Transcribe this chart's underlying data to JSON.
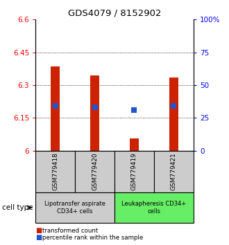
{
  "title": "GDS4079 / 8152902",
  "samples": [
    "GSM779418",
    "GSM779420",
    "GSM779419",
    "GSM779421"
  ],
  "bar_tops": [
    6.385,
    6.345,
    6.055,
    6.335
  ],
  "bar_bottom": 6.0,
  "blue_y": [
    6.205,
    6.2,
    6.185,
    6.205
  ],
  "ylim": [
    6.0,
    6.6
  ],
  "yticks_left": [
    6.0,
    6.15,
    6.3,
    6.45,
    6.6
  ],
  "yticks_right": [
    0,
    25,
    50,
    75,
    100
  ],
  "ytick_labels_left": [
    "6",
    "6.15",
    "6.3",
    "6.45",
    "6.6"
  ],
  "ytick_labels_right": [
    "0",
    "25",
    "50",
    "75",
    "100%"
  ],
  "bar_color": "#cc2200",
  "blue_color": "#2255cc",
  "group1_label": "Lipotransfer aspirate\nCD34+ cells",
  "group2_label": "Leukapheresis CD34+\ncells",
  "group1_color": "#cccccc",
  "group2_color": "#66ee66",
  "cell_type_label": "cell type",
  "legend_red": "transformed count",
  "legend_blue": "percentile rank within the sample"
}
